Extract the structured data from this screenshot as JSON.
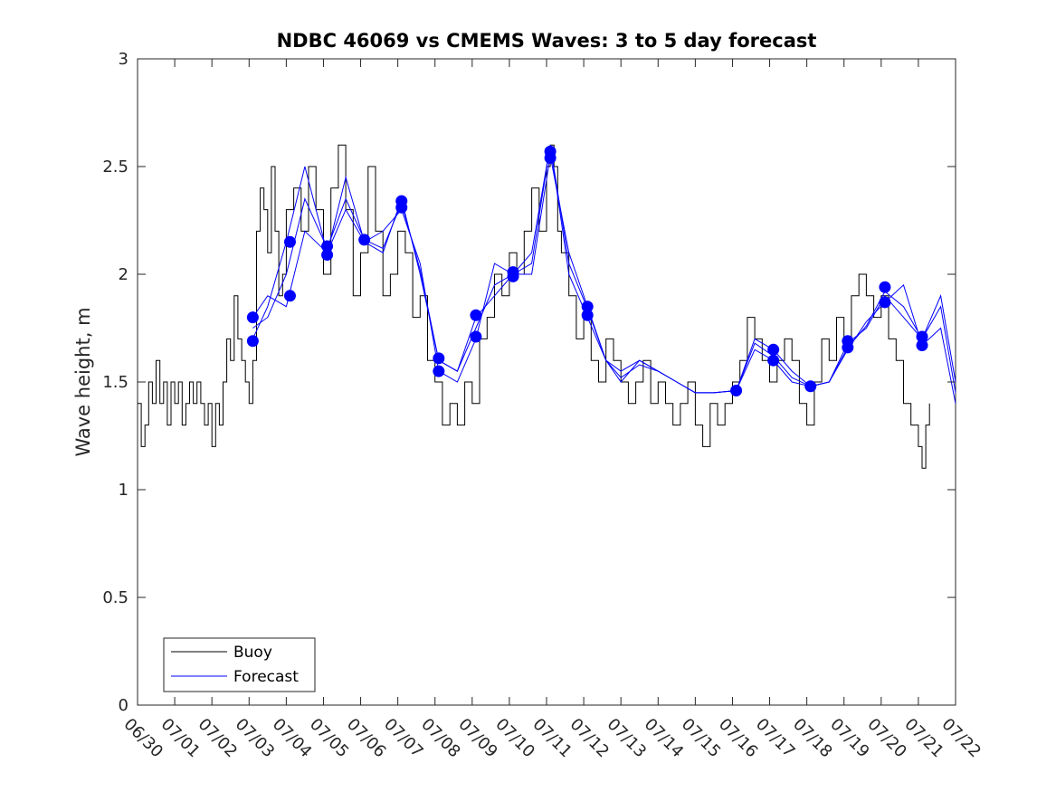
{
  "chart_data": {
    "type": "line",
    "title": "NDBC 46069 vs CMEMS Waves: 3 to 5 day forecast",
    "xlabel": "",
    "ylabel": "Wave height, m",
    "ylim": [
      0,
      3
    ],
    "yticks": [
      "0",
      "0.5",
      "1",
      "1.5",
      "2",
      "2.5",
      "3"
    ],
    "xlim": [
      "06/30",
      "07/22"
    ],
    "xticks": [
      "06/30",
      "07/01",
      "07/02",
      "07/03",
      "07/04",
      "07/05",
      "07/06",
      "07/07",
      "07/08",
      "07/09",
      "07/10",
      "07/11",
      "07/12",
      "07/13",
      "07/14",
      "07/15",
      "07/16",
      "07/17",
      "07/18",
      "07/19",
      "07/20",
      "07/21",
      "07/22"
    ],
    "grid": false,
    "legend": {
      "location": "bottom-left",
      "entries": [
        "Buoy",
        "Forecast"
      ]
    },
    "colors": {
      "buoy": "#000000",
      "forecast": "#0000ff",
      "axes": "#262626"
    },
    "series": [
      {
        "name": "Buoy",
        "x_days_after_06_30": [
          0,
          0.1,
          0.2,
          0.3,
          0.4,
          0.5,
          0.6,
          0.7,
          0.8,
          0.9,
          1.0,
          1.1,
          1.2,
          1.3,
          1.4,
          1.5,
          1.6,
          1.7,
          1.8,
          1.9,
          2.0,
          2.1,
          2.2,
          2.3,
          2.4,
          2.5,
          2.6,
          2.7,
          2.8,
          2.9,
          3.0,
          3.1,
          3.2,
          3.3,
          3.4,
          3.5,
          3.6,
          3.7,
          3.8,
          3.9,
          4.0,
          4.2,
          4.4,
          4.6,
          4.8,
          5.0,
          5.2,
          5.4,
          5.6,
          5.8,
          6.0,
          6.2,
          6.4,
          6.6,
          6.8,
          7.0,
          7.2,
          7.4,
          7.6,
          7.8,
          8.0,
          8.2,
          8.4,
          8.6,
          8.8,
          9.0,
          9.2,
          9.4,
          9.6,
          9.8,
          10.0,
          10.2,
          10.4,
          10.6,
          10.8,
          11.0,
          11.1,
          11.2,
          11.3,
          11.4,
          11.6,
          11.8,
          12.0,
          12.2,
          12.4,
          12.6,
          12.8,
          13.0,
          13.2,
          13.4,
          13.6,
          13.8,
          14.0,
          14.2,
          14.4,
          14.6,
          14.8,
          15.0,
          15.2,
          15.4,
          15.6,
          15.8,
          16.0,
          16.2,
          16.4,
          16.6,
          16.8,
          17.0,
          17.2,
          17.4,
          17.6,
          17.8,
          18.0,
          18.2,
          18.4,
          18.6,
          18.8,
          19.0,
          19.2,
          19.4,
          19.6,
          19.8,
          20.0,
          20.2,
          20.4,
          20.6,
          20.8,
          21.0,
          21.1,
          21.2,
          21.3
        ],
        "values": [
          1.4,
          1.2,
          1.3,
          1.5,
          1.4,
          1.6,
          1.4,
          1.5,
          1.3,
          1.5,
          1.4,
          1.5,
          1.3,
          1.4,
          1.5,
          1.4,
          1.5,
          1.4,
          1.3,
          1.4,
          1.2,
          1.4,
          1.3,
          1.5,
          1.7,
          1.6,
          1.9,
          1.7,
          1.6,
          1.5,
          1.4,
          1.6,
          2.2,
          2.4,
          2.3,
          2.1,
          2.5,
          2.2,
          1.9,
          2.0,
          2.3,
          2.4,
          2.2,
          2.5,
          2.3,
          2.0,
          2.4,
          2.6,
          2.3,
          1.9,
          2.1,
          2.5,
          2.2,
          1.9,
          2.0,
          2.2,
          2.1,
          1.8,
          1.9,
          1.6,
          1.5,
          1.3,
          1.4,
          1.3,
          1.5,
          1.4,
          1.7,
          1.8,
          2.0,
          1.9,
          2.1,
          2.0,
          2.2,
          2.4,
          2.2,
          2.5,
          2.6,
          2.5,
          2.2,
          2.1,
          1.9,
          1.7,
          1.8,
          1.6,
          1.5,
          1.7,
          1.6,
          1.5,
          1.4,
          1.5,
          1.6,
          1.4,
          1.5,
          1.4,
          1.3,
          1.4,
          1.5,
          1.3,
          1.2,
          1.4,
          1.3,
          1.4,
          1.5,
          1.6,
          1.8,
          1.7,
          1.6,
          1.5,
          1.6,
          1.7,
          1.6,
          1.4,
          1.3,
          1.5,
          1.7,
          1.6,
          1.8,
          1.7,
          1.9,
          2.0,
          1.9,
          1.8,
          1.9,
          1.7,
          1.6,
          1.4,
          1.3,
          1.2,
          1.1,
          1.3,
          1.4
        ]
      },
      {
        "name": "Forecast",
        "x_days_after_06_30": [
          3.1,
          3.5,
          4.0,
          4.5,
          5.1,
          5.6,
          6.1,
          6.6,
          7.1,
          7.6,
          8.1,
          8.6,
          9.1,
          9.6,
          10.1,
          10.6,
          11.1,
          11.6,
          12.1,
          12.6,
          13.0,
          13.5,
          14.0,
          14.5,
          15.0,
          15.5,
          16.1,
          16.6,
          17.1,
          17.6,
          18.1,
          18.6,
          19.1,
          19.6,
          20.1,
          20.6,
          21.1,
          21.6,
          22.0
        ],
        "values": [
          1.8,
          1.9,
          1.85,
          2.2,
          2.1,
          2.3,
          2.15,
          2.1,
          2.35,
          2.0,
          1.6,
          1.55,
          1.8,
          1.9,
          2.0,
          2.1,
          2.6,
          2.0,
          1.8,
          1.6,
          1.55,
          1.6,
          1.55,
          1.5,
          1.45,
          1.45,
          1.46,
          1.7,
          1.65,
          1.55,
          1.48,
          1.5,
          1.68,
          1.75,
          1.9,
          1.8,
          1.7,
          1.9,
          1.5
        ]
      },
      {
        "name": "Forecast",
        "x_days_after_06_30": [
          3.1,
          3.5,
          4.0,
          4.5,
          5.1,
          5.6,
          6.1,
          6.6,
          7.1,
          7.6,
          8.1,
          8.6,
          9.1,
          9.6,
          10.1,
          10.6,
          11.1,
          11.6,
          12.1,
          12.6,
          13.0,
          13.5,
          14.0,
          14.5,
          15.0,
          15.5,
          16.1,
          16.6,
          17.1,
          17.6,
          18.1,
          18.6,
          19.1,
          19.6,
          20.1,
          20.6,
          21.1,
          21.6,
          22.0
        ],
        "values": [
          1.7,
          1.85,
          2.15,
          2.5,
          2.1,
          2.45,
          2.15,
          2.2,
          2.3,
          2.05,
          1.55,
          1.5,
          1.7,
          2.05,
          2.0,
          2.0,
          2.55,
          2.1,
          1.85,
          1.6,
          1.5,
          1.6,
          1.55,
          1.5,
          1.45,
          1.45,
          1.46,
          1.65,
          1.6,
          1.5,
          1.48,
          1.5,
          1.65,
          1.78,
          1.87,
          1.95,
          1.67,
          1.75,
          1.4
        ]
      },
      {
        "name": "Forecast",
        "x_days_after_06_30": [
          3.1,
          3.5,
          4.0,
          4.5,
          5.1,
          5.6,
          6.1,
          6.6,
          7.1,
          7.6,
          8.1,
          8.6,
          9.1,
          9.6,
          10.1,
          10.6,
          11.1,
          11.6,
          12.1,
          12.6,
          13.0,
          13.5,
          14.0,
          14.5,
          15.0,
          15.5,
          16.1,
          16.6,
          17.1,
          17.6,
          18.1,
          18.6,
          19.1,
          19.6,
          20.1,
          20.6,
          21.1,
          21.6,
          22.0
        ],
        "values": [
          1.75,
          1.8,
          2.0,
          2.35,
          2.12,
          2.35,
          2.16,
          2.12,
          2.33,
          2.02,
          1.6,
          1.55,
          1.75,
          1.95,
          2.0,
          2.05,
          2.6,
          2.05,
          1.84,
          1.6,
          1.52,
          1.58,
          1.55,
          1.5,
          1.45,
          1.45,
          1.46,
          1.68,
          1.62,
          1.52,
          1.48,
          1.5,
          1.66,
          1.76,
          1.92,
          1.85,
          1.7,
          1.85,
          1.45
        ]
      }
    ],
    "forecast_markers": {
      "x_days_after_06_30": [
        3.1,
        3.1,
        4.1,
        4.1,
        5.1,
        5.1,
        6.1,
        7.1,
        7.1,
        8.1,
        8.1,
        9.1,
        9.1,
        10.1,
        10.1,
        11.1,
        11.1,
        12.1,
        12.1,
        16.1,
        17.1,
        17.1,
        18.1,
        19.1,
        19.1,
        20.1,
        20.1,
        21.1,
        21.1
      ],
      "values": [
        1.8,
        1.69,
        2.15,
        1.9,
        2.13,
        2.09,
        2.16,
        2.34,
        2.31,
        1.61,
        1.55,
        1.81,
        1.71,
        2.01,
        1.99,
        2.57,
        2.54,
        1.85,
        1.81,
        1.46,
        1.65,
        1.6,
        1.48,
        1.69,
        1.66,
        1.94,
        1.87,
        1.71,
        1.67
      ]
    }
  }
}
